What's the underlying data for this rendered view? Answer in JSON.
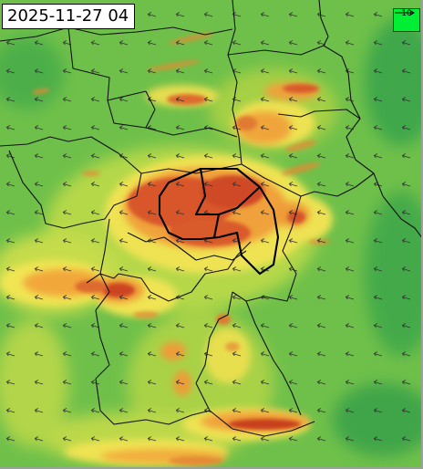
{
  "timestamp": "2025-11-27 04",
  "legend": {
    "reference_speed": "10",
    "icon": "wind-reference-arrow",
    "color": "#00ee33"
  },
  "map": {
    "field": "wind speed",
    "colormap": [
      "#2f9e45",
      "#6cbf3f",
      "#b8d64a",
      "#f2e552",
      "#f3a33a",
      "#d9552a",
      "#b8351f"
    ],
    "arrow_color": "#333333",
    "border_color": "#111111",
    "background_color": "#6fc04a"
  }
}
